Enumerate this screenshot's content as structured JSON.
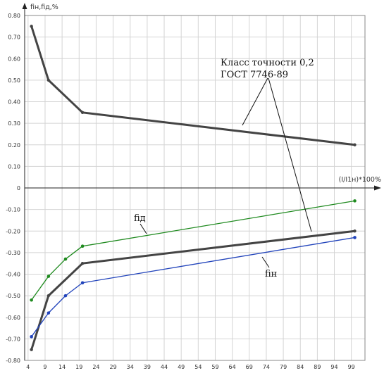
{
  "chart_data": {
    "type": "line",
    "ylabel": "fiн,fiд,%",
    "xlabel": "(I/I1н)*100%",
    "ylim": [
      -0.8,
      0.8
    ],
    "xlim": [
      3,
      103
    ],
    "yticks": [
      "0.80",
      "0.70",
      "0.60",
      "0.50",
      "0.40",
      "0.30",
      "0.20",
      "0.10",
      "0",
      "-0.10",
      "-0.20",
      "-0.30",
      "-0.40",
      "-0.50",
      "-0.60",
      "-0.70",
      "-0.80"
    ],
    "xticks": [
      "4",
      "9",
      "14",
      "19",
      "24",
      "29",
      "34",
      "39",
      "44",
      "49",
      "54",
      "59",
      "64",
      "69",
      "74",
      "79",
      "84",
      "89",
      "94",
      "99"
    ],
    "grid": true,
    "colors": {
      "limit": "#444444",
      "fid": "#1f8a1f",
      "fin": "#2244bb",
      "text": "#111111"
    },
    "series": [
      {
        "key": "limit_upper",
        "x": [
          5,
          10,
          20,
          100
        ],
        "y": [
          0.75,
          0.5,
          0.35,
          0.2
        ]
      },
      {
        "key": "limit_lower",
        "x": [
          5,
          10,
          20,
          100
        ],
        "y": [
          -0.75,
          -0.5,
          -0.35,
          -0.2
        ]
      },
      {
        "key": "fid",
        "name": "fiд",
        "x": [
          5,
          10,
          15,
          20,
          100
        ],
        "y": [
          -0.52,
          -0.41,
          -0.33,
          -0.27,
          -0.06
        ]
      },
      {
        "key": "fin",
        "name": "fiн",
        "x": [
          5,
          10,
          15,
          20,
          100
        ],
        "y": [
          -0.69,
          -0.58,
          -0.5,
          -0.44,
          -0.23
        ]
      }
    ],
    "annotations": {
      "class_line1": "Класс точности 0,2",
      "class_line2": "ГОСТ 7746-89",
      "fid_label": "fiд",
      "fin_label": "fiн"
    }
  }
}
